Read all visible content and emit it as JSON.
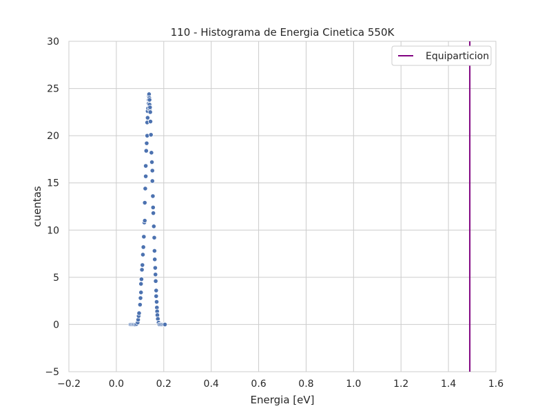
{
  "chart_data": {
    "type": "scatter",
    "title": "110 - Histograma de Energia Cinetica 550K",
    "xlabel": "Energia [eV]",
    "ylabel": "cuentas",
    "xlim": [
      -0.2,
      1.6
    ],
    "ylim": [
      -5,
      30
    ],
    "x_ticks": [
      -0.2,
      0.0,
      0.2,
      0.4,
      0.6,
      0.8,
      1.0,
      1.2,
      1.4,
      1.6
    ],
    "x_tick_labels": [
      "−0.2",
      "0.0",
      "0.2",
      "0.4",
      "0.6",
      "0.8",
      "1.0",
      "1.2",
      "1.4",
      "1.6"
    ],
    "y_ticks": [
      -5,
      0,
      5,
      10,
      15,
      20,
      25,
      30
    ],
    "y_tick_labels": [
      "−5",
      "0",
      "5",
      "10",
      "15",
      "20",
      "25",
      "30"
    ],
    "grid": true,
    "legend_position": "top-right",
    "series": [
      {
        "type": "scatter",
        "color": "#4c72b0",
        "points": [
          [
            0.06,
            0.0
          ],
          [
            0.065,
            0.0
          ],
          [
            0.07,
            0.0
          ],
          [
            0.075,
            0.0
          ],
          [
            0.08,
            0.0
          ],
          [
            0.085,
            0.05
          ],
          [
            0.09,
            0.2
          ],
          [
            0.092,
            0.5
          ],
          [
            0.094,
            0.9
          ],
          [
            0.096,
            1.2
          ],
          [
            0.1,
            2.1
          ],
          [
            0.102,
            2.8
          ],
          [
            0.104,
            3.4
          ],
          [
            0.104,
            4.3
          ],
          [
            0.106,
            4.8
          ],
          [
            0.108,
            5.8
          ],
          [
            0.11,
            6.3
          ],
          [
            0.112,
            7.4
          ],
          [
            0.114,
            8.2
          ],
          [
            0.116,
            9.3
          ],
          [
            0.118,
            10.8
          ],
          [
            0.12,
            11.0
          ],
          [
            0.12,
            12.9
          ],
          [
            0.122,
            14.4
          ],
          [
            0.124,
            15.7
          ],
          [
            0.124,
            16.8
          ],
          [
            0.126,
            18.4
          ],
          [
            0.128,
            19.2
          ],
          [
            0.13,
            20.0
          ],
          [
            0.13,
            21.4
          ],
          [
            0.132,
            21.9
          ],
          [
            0.132,
            22.6
          ],
          [
            0.134,
            22.9
          ],
          [
            0.136,
            23.4
          ],
          [
            0.136,
            23.8
          ],
          [
            0.137,
            24.2
          ],
          [
            0.138,
            24.4
          ],
          [
            0.139,
            24.0
          ],
          [
            0.14,
            23.8
          ],
          [
            0.14,
            23.3
          ],
          [
            0.141,
            22.8
          ],
          [
            0.142,
            23.0
          ],
          [
            0.143,
            22.5
          ],
          [
            0.144,
            21.5
          ],
          [
            0.146,
            20.1
          ],
          [
            0.148,
            18.2
          ],
          [
            0.15,
            17.2
          ],
          [
            0.152,
            16.3
          ],
          [
            0.152,
            15.2
          ],
          [
            0.154,
            13.6
          ],
          [
            0.155,
            12.4
          ],
          [
            0.156,
            11.8
          ],
          [
            0.158,
            10.4
          ],
          [
            0.16,
            9.2
          ],
          [
            0.161,
            7.8
          ],
          [
            0.162,
            6.9
          ],
          [
            0.164,
            6.0
          ],
          [
            0.165,
            5.3
          ],
          [
            0.166,
            4.6
          ],
          [
            0.168,
            3.6
          ],
          [
            0.168,
            3.0
          ],
          [
            0.17,
            2.4
          ],
          [
            0.171,
            1.8
          ],
          [
            0.172,
            1.4
          ],
          [
            0.173,
            1.0
          ],
          [
            0.175,
            0.6
          ],
          [
            0.178,
            0.2
          ],
          [
            0.182,
            0.0
          ],
          [
            0.188,
            0.0
          ],
          [
            0.194,
            0.0
          ],
          [
            0.2,
            0.0
          ],
          [
            0.205,
            0.0
          ]
        ]
      },
      {
        "type": "vline",
        "name": "Equiparticion",
        "x": 1.49,
        "color": "#800080"
      }
    ]
  }
}
